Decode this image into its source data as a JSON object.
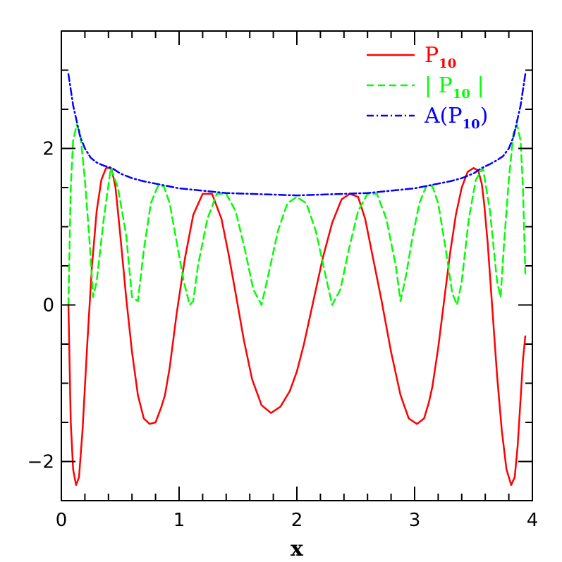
{
  "chart_data": {
    "type": "line",
    "title": "",
    "xlabel": "x",
    "ylabel": "",
    "xlim": [
      0,
      4
    ],
    "ylim": [
      -2.5,
      3.5
    ],
    "x_ticks": [
      0,
      1,
      2,
      3,
      4
    ],
    "y_ticks": [
      -2,
      0,
      2
    ],
    "x_tick_labels": [
      "0",
      "1",
      "2",
      "3",
      "4"
    ],
    "y_tick_labels": [
      "−2",
      "0",
      "2"
    ],
    "grid": false,
    "legend_position": "top-right",
    "series": [
      {
        "name": "P_10",
        "legend_label": "P",
        "legend_sub": "10",
        "legend_post": "",
        "color": "#ff0000",
        "style": "solid",
        "x": [
          0.06,
          0.08,
          0.1,
          0.125,
          0.15,
          0.18,
          0.22,
          0.26,
          0.3,
          0.34,
          0.38,
          0.41,
          0.43,
          0.46,
          0.5,
          0.55,
          0.6,
          0.65,
          0.7,
          0.75,
          0.8,
          0.85,
          0.88,
          0.92,
          0.98,
          1.05,
          1.12,
          1.2,
          1.28,
          1.36,
          1.42,
          1.48,
          1.55,
          1.62,
          1.7,
          1.78,
          1.86,
          1.94,
          2.0,
          2.06,
          2.14,
          2.22,
          2.3,
          2.38,
          2.45,
          2.52,
          2.58,
          2.64,
          2.72,
          2.8,
          2.88,
          2.95,
          3.02,
          3.08,
          3.12,
          3.15,
          3.2,
          3.25,
          3.3,
          3.35,
          3.4,
          3.45,
          3.5,
          3.54,
          3.57,
          3.59,
          3.62,
          3.66,
          3.7,
          3.74,
          3.78,
          3.82,
          3.85,
          3.875,
          3.9,
          3.92,
          3.94
        ],
        "y": [
          0.0,
          -1.5,
          -2.1,
          -2.3,
          -2.2,
          -1.6,
          -0.5,
          0.5,
          1.2,
          1.6,
          1.75,
          1.75,
          1.72,
          1.5,
          0.9,
          0.1,
          -0.6,
          -1.15,
          -1.45,
          -1.52,
          -1.5,
          -1.3,
          -1.15,
          -0.8,
          -0.1,
          0.6,
          1.15,
          1.42,
          1.42,
          1.1,
          0.65,
          0.15,
          -0.45,
          -0.95,
          -1.28,
          -1.38,
          -1.3,
          -1.1,
          -0.85,
          -0.5,
          0.05,
          0.6,
          1.05,
          1.35,
          1.42,
          1.38,
          1.1,
          0.65,
          0.05,
          -0.6,
          -1.15,
          -1.45,
          -1.52,
          -1.45,
          -1.25,
          -1.05,
          -0.55,
          0.05,
          0.65,
          1.15,
          1.5,
          1.7,
          1.75,
          1.72,
          1.55,
          1.3,
          0.8,
          -0.05,
          -0.9,
          -1.6,
          -2.1,
          -2.3,
          -2.2,
          -1.8,
          -1.2,
          -0.7,
          -0.4
        ]
      },
      {
        "name": "|P_10|",
        "legend_label": "| P",
        "legend_sub": "10",
        "legend_post": " |",
        "color": "#00ff00",
        "style": "dashed",
        "x": [
          0.06,
          0.08,
          0.1,
          0.13,
          0.16,
          0.2,
          0.24,
          0.27,
          0.3,
          0.36,
          0.42,
          0.48,
          0.55,
          0.6,
          0.65,
          0.7,
          0.76,
          0.82,
          0.87,
          0.92,
          0.98,
          1.04,
          1.09,
          1.12,
          1.16,
          1.24,
          1.32,
          1.4,
          1.48,
          1.56,
          1.63,
          1.7,
          1.76,
          1.84,
          1.92,
          2.0,
          2.08,
          2.16,
          2.24,
          2.3,
          2.37,
          2.44,
          2.52,
          2.6,
          2.68,
          2.76,
          2.84,
          2.88,
          2.93,
          2.98,
          3.04,
          3.1,
          3.15,
          3.2,
          3.26,
          3.32,
          3.36,
          3.4,
          3.46,
          3.52,
          3.58,
          3.64,
          3.7,
          3.73,
          3.76,
          3.8,
          3.84,
          3.87,
          3.9,
          3.92,
          3.94
        ],
        "y": [
          0.0,
          1.5,
          2.1,
          2.3,
          2.2,
          1.6,
          0.8,
          0.1,
          0.3,
          1.1,
          1.75,
          1.5,
          0.9,
          0.1,
          0.05,
          0.7,
          1.3,
          1.52,
          1.52,
          1.3,
          0.8,
          0.3,
          0.0,
          0.05,
          0.5,
          1.1,
          1.42,
          1.42,
          1.2,
          0.7,
          0.2,
          0.0,
          0.4,
          0.95,
          1.3,
          1.38,
          1.3,
          0.95,
          0.4,
          0.0,
          0.2,
          0.7,
          1.2,
          1.42,
          1.42,
          1.1,
          0.5,
          0.05,
          0.4,
          0.85,
          1.3,
          1.52,
          1.52,
          1.3,
          0.75,
          0.15,
          0.0,
          0.3,
          1.1,
          1.6,
          1.75,
          1.2,
          0.3,
          0.1,
          0.8,
          1.6,
          2.2,
          2.3,
          2.1,
          1.5,
          0.4
        ]
      },
      {
        "name": "A(P_10)",
        "legend_label": "A(P",
        "legend_sub": "10",
        "legend_post": ")",
        "color": "#0000ff",
        "style": "dashdot",
        "x": [
          0.06,
          0.08,
          0.1,
          0.13,
          0.16,
          0.2,
          0.25,
          0.3,
          0.36,
          0.43,
          0.5,
          0.6,
          0.7,
          0.8,
          0.9,
          1.0,
          1.2,
          1.4,
          1.6,
          1.8,
          2.0,
          2.2,
          2.4,
          2.6,
          2.8,
          3.0,
          3.1,
          3.2,
          3.3,
          3.4,
          3.5,
          3.57,
          3.64,
          3.7,
          3.75,
          3.8,
          3.84,
          3.87,
          3.9,
          3.92,
          3.94
        ],
        "y": [
          2.95,
          2.75,
          2.55,
          2.35,
          2.15,
          2.0,
          1.88,
          1.82,
          1.78,
          1.75,
          1.68,
          1.62,
          1.58,
          1.55,
          1.52,
          1.49,
          1.46,
          1.43,
          1.42,
          1.41,
          1.4,
          1.41,
          1.42,
          1.43,
          1.46,
          1.49,
          1.52,
          1.55,
          1.58,
          1.62,
          1.68,
          1.75,
          1.8,
          1.85,
          1.9,
          2.0,
          2.15,
          2.35,
          2.55,
          2.75,
          2.95
        ]
      }
    ]
  }
}
